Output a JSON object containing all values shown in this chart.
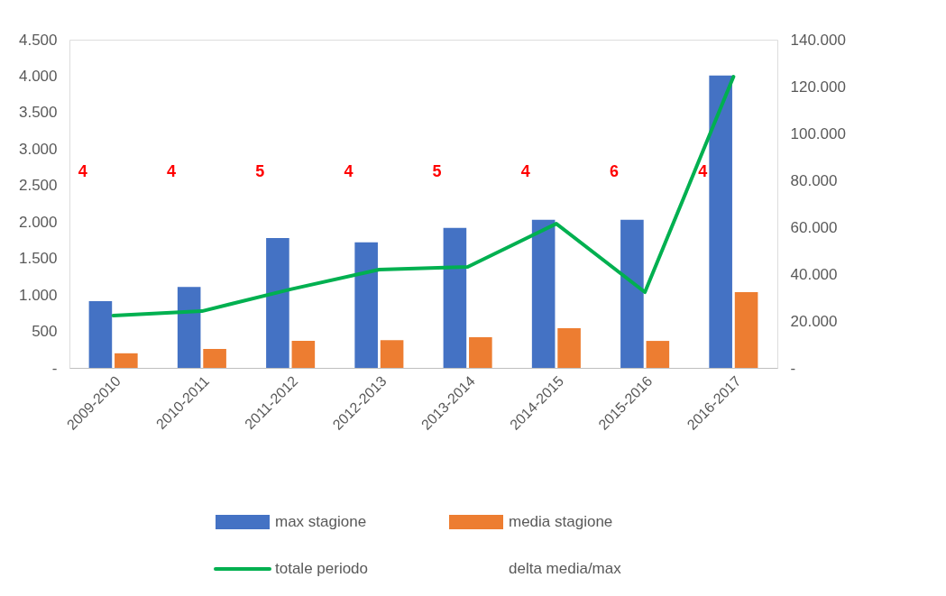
{
  "chart_data": {
    "type": "bar",
    "categories": [
      "2009-2010",
      "2010-2011",
      "2011-2012",
      "2012-2013",
      "2013-2014",
      "2014-2015",
      "2015-2016",
      "2016-2017"
    ],
    "series": [
      {
        "name": "max stagione",
        "color": "#4472c4",
        "values": [
          915,
          1110,
          1780,
          1720,
          1920,
          2030,
          2030,
          4010
        ]
      },
      {
        "name": "media stagione",
        "color": "#ed7d31",
        "values": [
          200,
          260,
          370,
          380,
          420,
          545,
          370,
          1040
        ]
      },
      {
        "name": "totale periodo",
        "type": "line",
        "axis": "y2",
        "color": "#00b050",
        "marker": "none",
        "values": [
          22300,
          24200,
          33500,
          41900,
          43100,
          61500,
          32300,
          124200
        ]
      }
    ],
    "annotations": [
      "4",
      "4",
      "5",
      "4",
      "5",
      "4",
      "6",
      "4",
      "delta media/max"
    ],
    "ylim": [
      0,
      4500
    ],
    "yticks": [
      {
        "value": 0,
        "label": "-"
      },
      500,
      {
        "value": 1000,
        "label": "1.000"
      },
      {
        "value": 1500,
        "label": "1.500"
      },
      {
        "value": 2000,
        "label": "2.000"
      },
      {
        "value": 2500,
        "label": "2.500"
      },
      {
        "value": 3000,
        "label": "3.000"
      },
      {
        "value": 3500,
        "label": "3.500"
      },
      {
        "value": 4000,
        "label": "4.000"
      },
      {
        "value": 4500,
        "label": "4.500"
      }
    ],
    "y2lim": [
      0,
      140000
    ],
    "y2ticks": [
      {
        "value": 0,
        "label": "-"
      },
      {
        "value": 20000,
        "label": "20.000"
      },
      {
        "value": 40000,
        "label": "40.000"
      },
      {
        "value": 60000,
        "label": "60.000"
      },
      {
        "value": 80000,
        "label": "80.000"
      },
      {
        "value": 100000,
        "label": "100.000"
      },
      {
        "value": 120000,
        "label": "120.000"
      },
      {
        "value": 140000,
        "label": "140.000"
      }
    ],
    "grid": false,
    "legend": "bottom"
  }
}
